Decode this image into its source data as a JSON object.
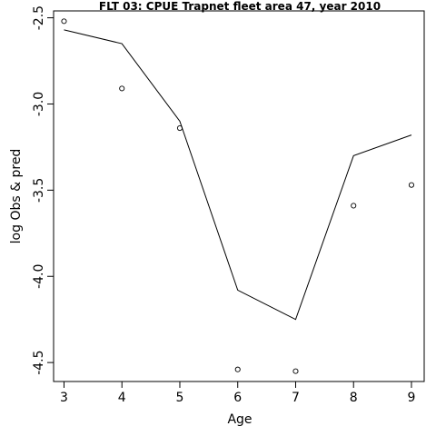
{
  "chart_data": {
    "type": "line",
    "title": "FLT 03: CPUE Trapnet fleet area 47, year 2010",
    "xlabel": "Age",
    "ylabel": "log Obs & pred",
    "xlim": [
      2.82,
      9.22
    ],
    "ylim": [
      -4.61,
      -2.46
    ],
    "x_ticks": [
      "3",
      "4",
      "5",
      "6",
      "7",
      "8",
      "9"
    ],
    "y_ticks": [
      "-2.5",
      "-3.0",
      "-3.5",
      "-4.0",
      "-4.5"
    ],
    "x": [
      3,
      4,
      5,
      6,
      7,
      8,
      9
    ],
    "series": [
      {
        "type": "points",
        "values": [
          -2.52,
          -2.91,
          -3.14,
          -4.54,
          -4.55,
          -3.59,
          -3.47
        ]
      },
      {
        "type": "line",
        "values": [
          -2.57,
          -2.65,
          -3.1,
          -4.08,
          -4.25,
          -3.3,
          -3.18
        ]
      }
    ],
    "grid": false,
    "legend": "none"
  }
}
